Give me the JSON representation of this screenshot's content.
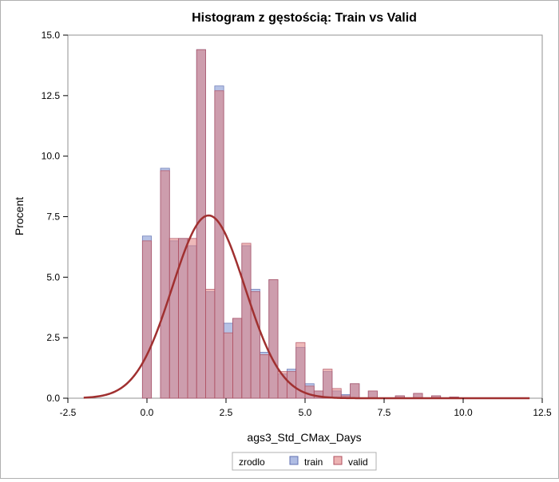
{
  "chart_data": {
    "type": "bar",
    "title": "Histogram z gęstością: Train vs Valid",
    "xlabel": "ags3_Std_CMax_Days",
    "ylabel": "Procent",
    "xlim": [
      -2.5,
      12.5
    ],
    "ylim": [
      0,
      15
    ],
    "xticks": [
      -2.5,
      0.0,
      2.5,
      5.0,
      7.5,
      10.0,
      12.5
    ],
    "yticks": [
      0.0,
      2.5,
      5.0,
      7.5,
      10.0,
      12.5,
      15.0
    ],
    "xtick_labels": [
      "-2.5",
      "0.0",
      "2.5",
      "5.0",
      "7.5",
      "10.0",
      "12.5"
    ],
    "ytick_labels": [
      "0.0",
      "2.5",
      "5.0",
      "7.5",
      "10.0",
      "12.5",
      "15.0"
    ],
    "bin_width": 0.2857,
    "bin_starts": [
      -0.143,
      0.429,
      0.714,
      1.0,
      1.286,
      1.571,
      1.857,
      2.143,
      2.429,
      2.714,
      3.0,
      3.286,
      3.571,
      3.857,
      4.143,
      4.429,
      4.714,
      5.0,
      5.286,
      5.571,
      5.857,
      6.143,
      6.429,
      7.0,
      7.857,
      8.429,
      9.0,
      9.571
    ],
    "grid": false,
    "legend": {
      "title": "zrodlo",
      "placement": "bottom-center",
      "entries": [
        "train",
        "valid"
      ]
    },
    "series": [
      {
        "name": "train",
        "color": "#7a8fd0",
        "values": [
          6.7,
          9.5,
          6.5,
          6.6,
          6.3,
          14.4,
          4.4,
          12.9,
          3.1,
          3.3,
          6.3,
          4.5,
          1.9,
          4.9,
          1.0,
          1.2,
          2.1,
          0.6,
          0.3,
          1.1,
          0.3,
          0.15,
          0.6,
          0.3,
          0.1,
          0.2,
          0.1,
          0.05
        ]
      },
      {
        "name": "valid",
        "color": "#e08080",
        "values": [
          6.5,
          9.4,
          6.6,
          6.6,
          6.6,
          14.4,
          4.5,
          12.7,
          2.7,
          3.3,
          6.4,
          4.4,
          1.8,
          4.9,
          1.1,
          1.1,
          2.3,
          0.5,
          0.3,
          1.2,
          0.4,
          0.1,
          0.6,
          0.3,
          0.1,
          0.2,
          0.1,
          0.05
        ]
      }
    ],
    "density_curve": {
      "type": "normal",
      "color": "#a03030",
      "mean": 1.95,
      "peak": 7.55,
      "sd": 1.15,
      "x_range": [
        -2.0,
        12.1
      ]
    }
  }
}
